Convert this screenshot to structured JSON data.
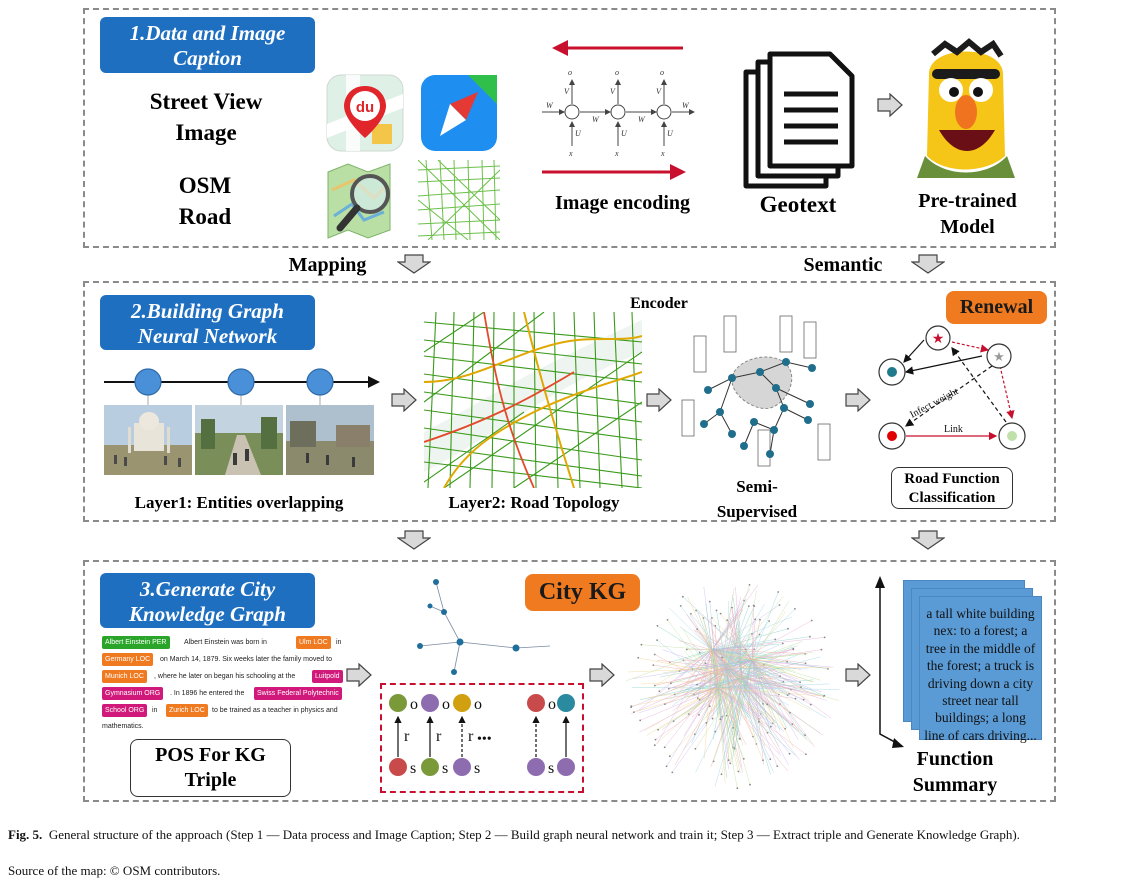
{
  "panel1": {
    "header": "1.Data and Image Caption",
    "street_view_label": "Street View Image",
    "osm_road_label": "OSM Road",
    "baidu_icon_text": "du",
    "rnn_symbols": {
      "o": "o",
      "v": "V",
      "w": "W",
      "u": "U",
      "s": "s",
      "x": "x"
    },
    "image_encoding_label": "Image encoding",
    "geotext_label": "Geotext",
    "pretrained_label": "Pre-trained Model"
  },
  "transitions": {
    "mapping": "Mapping",
    "semantic": "Semantic"
  },
  "panel2": {
    "header": "2.Building Graph Neural Network",
    "layer1_label": "Layer1: Entities overlapping",
    "layer2_label": "Layer2: Road Topology",
    "encoder_label": "Encoder",
    "semi_supervised_label": "Semi-Supervised",
    "renewal_label": "Renewal",
    "infect_weight_label": "Infect weight",
    "link_label": "Link",
    "road_function_label": "Road Function Classification"
  },
  "panel3": {
    "header": "3.Generate City Knowledge Graph",
    "ner_lines": [
      [
        {
          "tag": "Albert Einstein",
          "type": "PER",
          "color": "#2aa52a"
        },
        {
          "text": "Albert Einstein was born in"
        },
        {
          "tag": "Ulm",
          "type": "LOC",
          "color": "#f07a20"
        },
        {
          "text": "in"
        }
      ],
      [
        {
          "tag": "Germany",
          "type": "LOC",
          "color": "#f07a20"
        },
        {
          "text": "on March 14, 1879. Six weeks later the family moved to"
        }
      ],
      [
        {
          "tag": "Munich",
          "type": "LOC",
          "color": "#f07a20"
        },
        {
          "text": ", where he later on began his schooling at the"
        },
        {
          "tag": "Luitpold",
          "type": "",
          "color": "#d0197a"
        }
      ],
      [
        {
          "tag": "Gymnasium",
          "type": "ORG",
          "color": "#d0197a"
        },
        {
          "text": ". In 1896 he entered the"
        },
        {
          "tag": "Swiss Federal Polytechnic",
          "type": "",
          "color": "#d0197a"
        }
      ],
      [
        {
          "tag": "School",
          "type": "ORG",
          "color": "#d0197a"
        },
        {
          "text": "in"
        },
        {
          "tag": "Zurich",
          "type": "LOC",
          "color": "#f07a20"
        },
        {
          "text": "to be trained as a teacher in physics and"
        }
      ],
      [
        {
          "text": "mathematics."
        }
      ]
    ],
    "pos_label": "POS For KG Triple",
    "city_kg_label": "City KG",
    "triple_labels": {
      "o": "o",
      "r": "r",
      "s": "s",
      "ellipsis": "•••"
    },
    "summary_text": "a tall white building nex: to a forest; a tree in the middle of the forest; a truck is driving down a city street near tall buildings; a long line of cars driving...",
    "function_summary_label": "Function Summary"
  },
  "caption": {
    "fig_label": "Fig. 5.",
    "text": "General structure of the approach (Step 1 — Data process and Image Caption; Step 2 — Build graph neural network and train it; Step 3 — Extract triple and Generate Knowledge Graph).",
    "source": "Source of the map: © OSM contributors."
  },
  "colors": {
    "blue_header": "#1f6fc1",
    "orange_header": "#f07a20",
    "red_arrow": "#c8102e",
    "node_blue": "#4a90d9",
    "teal_node": "#1f7a8c",
    "dashed_red": "#c8102e",
    "summary_card": "#5b9bd5"
  }
}
